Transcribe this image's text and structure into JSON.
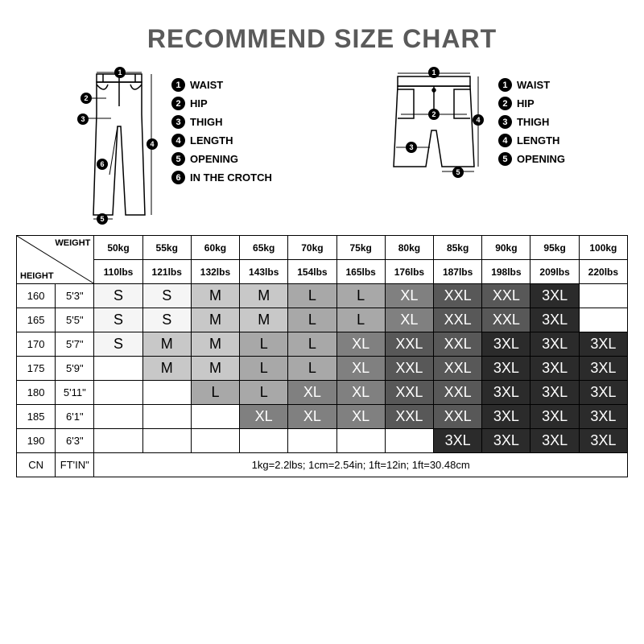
{
  "title": "RECOMMEND SIZE CHART",
  "legend_pants": [
    {
      "n": "1",
      "label": "WAIST"
    },
    {
      "n": "2",
      "label": "HIP"
    },
    {
      "n": "3",
      "label": "THIGH"
    },
    {
      "n": "4",
      "label": "LENGTH"
    },
    {
      "n": "5",
      "label": "OPENING"
    },
    {
      "n": "6",
      "label": "IN THE CROTCH"
    }
  ],
  "legend_shorts": [
    {
      "n": "1",
      "label": "WAIST"
    },
    {
      "n": "2",
      "label": "HIP"
    },
    {
      "n": "3",
      "label": "THIGH"
    },
    {
      "n": "4",
      "label": "LENGTH"
    },
    {
      "n": "5",
      "label": "OPENING"
    }
  ],
  "header": {
    "weight_label": "WEIGHT",
    "height_label": "HEIGHT",
    "weights_kg": [
      "50kg",
      "55kg",
      "60kg",
      "65kg",
      "70kg",
      "75kg",
      "80kg",
      "85kg",
      "90kg",
      "95kg",
      "100kg"
    ],
    "weights_lbs": [
      "110lbs",
      "121lbs",
      "132lbs",
      "143lbs",
      "154lbs",
      "165lbs",
      "176lbs",
      "187lbs",
      "198lbs",
      "209lbs",
      "220lbs"
    ]
  },
  "heights": [
    {
      "cn": "160",
      "ft": "5'3\""
    },
    {
      "cn": "165",
      "ft": "5'5\""
    },
    {
      "cn": "170",
      "ft": "5'7\""
    },
    {
      "cn": "175",
      "ft": "5'9\""
    },
    {
      "cn": "180",
      "ft": "5'11\""
    },
    {
      "cn": "185",
      "ft": "6'1\""
    },
    {
      "cn": "190",
      "ft": "6'3\""
    }
  ],
  "size_colors": {
    "S": "#f5f5f5",
    "M": "#c8c8c8",
    "L": "#a8a8a8",
    "XL": "#808080",
    "XXL": "#585858",
    "3XL": "#2b2b2b",
    "": "#ffffff"
  },
  "size_text_colors": {
    "S": "#000",
    "M": "#000",
    "L": "#000",
    "XL": "#fff",
    "XXL": "#fff",
    "3XL": "#fff",
    "": "#000"
  },
  "grid": [
    [
      "S",
      "S",
      "M",
      "M",
      "L",
      "L",
      "XL",
      "XXL",
      "XXL",
      "3XL",
      ""
    ],
    [
      "S",
      "S",
      "M",
      "M",
      "L",
      "L",
      "XL",
      "XXL",
      "XXL",
      "3XL",
      ""
    ],
    [
      "S",
      "M",
      "M",
      "L",
      "L",
      "XL",
      "XXL",
      "XXL",
      "3XL",
      "3XL",
      "3XL"
    ],
    [
      "",
      "M",
      "M",
      "L",
      "L",
      "XL",
      "XXL",
      "XXL",
      "3XL",
      "3XL",
      "3XL"
    ],
    [
      "",
      "",
      "L",
      "L",
      "XL",
      "XL",
      "XXL",
      "XXL",
      "3XL",
      "3XL",
      "3XL"
    ],
    [
      "",
      "",
      "",
      "XL",
      "XL",
      "XL",
      "XXL",
      "XXL",
      "3XL",
      "3XL",
      "3XL"
    ],
    [
      "",
      "",
      "",
      "",
      "",
      "",
      "",
      "3XL",
      "3XL",
      "3XL",
      "3XL"
    ]
  ],
  "footer": {
    "cn": "CN",
    "ft": "FT'IN\"",
    "note": "1kg=2.2lbs; 1cm=2.54in; 1ft=12in; 1ft=30.48cm"
  }
}
